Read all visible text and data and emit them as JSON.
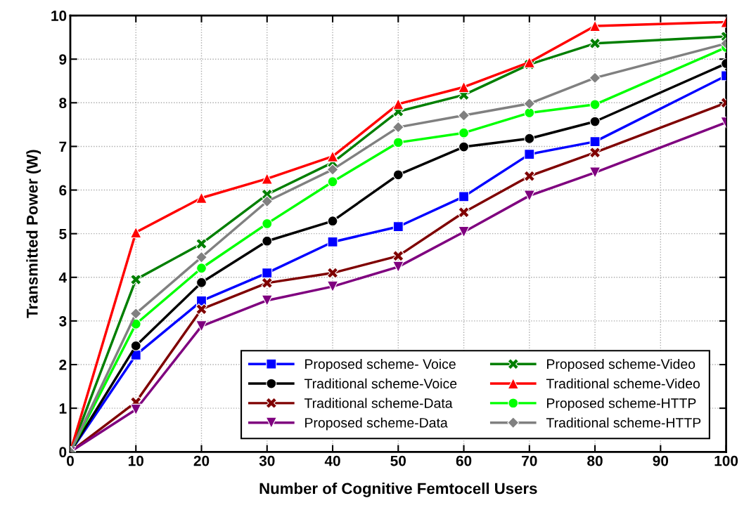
{
  "chart_data": {
    "type": "line",
    "xlabel": "Number of Cognitive Femtocell Users",
    "ylabel": "Transmitted Power (W)",
    "x": [
      0,
      10,
      20,
      30,
      40,
      50,
      60,
      70,
      80,
      100
    ],
    "xlim": [
      0,
      100
    ],
    "xticks": [
      0,
      10,
      20,
      30,
      40,
      50,
      60,
      70,
      80,
      90,
      100
    ],
    "ylim": [
      0,
      10
    ],
    "yticks": [
      0,
      1,
      2,
      3,
      4,
      5,
      6,
      7,
      8,
      9,
      10
    ],
    "grid": true,
    "legend": "bottom right",
    "line_style": "solid",
    "series": [
      {
        "name": "Proposed scheme- Voice",
        "color": "#0000ff",
        "marker": "square",
        "values": [
          0,
          2.22,
          3.46,
          4.1,
          4.81,
          5.16,
          5.85,
          6.82,
          7.11,
          8.62
        ]
      },
      {
        "name": "Proposed scheme-Video",
        "color": "#007f00",
        "marker": "cross",
        "values": [
          0,
          3.95,
          4.77,
          5.9,
          6.63,
          7.8,
          8.18,
          8.88,
          9.36,
          9.52
        ]
      },
      {
        "name": "Traditional scheme-Voice",
        "color": "#000000",
        "marker": "circle",
        "values": [
          0,
          2.43,
          3.88,
          4.83,
          5.29,
          6.35,
          6.99,
          7.18,
          7.57,
          8.9
        ]
      },
      {
        "name": "Traditional scheme-Video",
        "color": "#ff0000",
        "marker": "triangle",
        "values": [
          0,
          5.03,
          5.82,
          6.26,
          6.77,
          7.97,
          8.36,
          8.93,
          9.76,
          9.85
        ]
      },
      {
        "name": "Traditional scheme-Data",
        "color": "#7f0000",
        "marker": "cross",
        "values": [
          0,
          1.14,
          3.27,
          3.87,
          4.1,
          4.49,
          5.49,
          6.32,
          6.86,
          8.0
        ]
      },
      {
        "name": "Proposed scheme-HTTP",
        "color": "#00ff00",
        "marker": "circle",
        "values": [
          0,
          2.93,
          4.21,
          5.23,
          6.19,
          7.09,
          7.31,
          7.77,
          7.96,
          9.27
        ]
      },
      {
        "name": "Proposed scheme-Data",
        "color": "#7f007f",
        "marker": "triangle_down",
        "values": [
          0,
          0.97,
          2.88,
          3.47,
          3.79,
          4.24,
          5.04,
          5.87,
          6.4,
          7.55
        ]
      },
      {
        "name": "Traditional scheme-HTTP",
        "color": "#808080",
        "marker": "diamond",
        "values": [
          0,
          3.17,
          4.46,
          5.74,
          6.47,
          7.44,
          7.71,
          7.98,
          8.57,
          9.36
        ]
      }
    ]
  }
}
